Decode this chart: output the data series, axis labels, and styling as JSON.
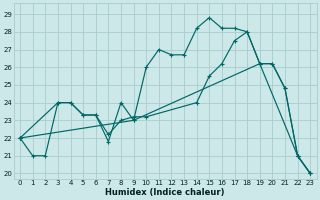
{
  "xlabel": "Humidex (Indice chaleur)",
  "bg_color": "#cce8e8",
  "line_color": "#006666",
  "grid_color": "#aacccc",
  "xlim": [
    -0.5,
    23.5
  ],
  "ylim": [
    19.7,
    29.6
  ],
  "xticks": [
    0,
    1,
    2,
    3,
    4,
    5,
    6,
    7,
    8,
    9,
    10,
    11,
    12,
    13,
    14,
    15,
    16,
    17,
    18,
    19,
    20,
    21,
    22,
    23
  ],
  "yticks": [
    20,
    21,
    22,
    23,
    24,
    25,
    26,
    27,
    28,
    29
  ],
  "line1_x": [
    0,
    1,
    2,
    3,
    4,
    5,
    6,
    7,
    8,
    9,
    10,
    11,
    12,
    13,
    14,
    15,
    16,
    17,
    18,
    19,
    20,
    21,
    22,
    23
  ],
  "line1_y": [
    22.0,
    21.0,
    21.0,
    24.0,
    24.0,
    23.3,
    23.3,
    21.8,
    24.0,
    23.0,
    26.0,
    27.0,
    26.7,
    26.7,
    28.2,
    28.8,
    28.2,
    28.2,
    28.0,
    26.2,
    26.2,
    24.8,
    21.0,
    20.0
  ],
  "line2_x": [
    0,
    3,
    4,
    5,
    6,
    7,
    8,
    9,
    10,
    14,
    15,
    16,
    17,
    18,
    19,
    20,
    21,
    22,
    23
  ],
  "line2_y": [
    22.0,
    24.0,
    24.0,
    23.3,
    23.3,
    22.2,
    23.0,
    23.2,
    23.2,
    24.0,
    25.5,
    26.2,
    27.5,
    28.0,
    26.2,
    26.2,
    24.8,
    21.0,
    20.0
  ],
  "line3_x": [
    0,
    9,
    19,
    22,
    23
  ],
  "line3_y": [
    22.0,
    23.0,
    26.2,
    21.0,
    20.0
  ]
}
